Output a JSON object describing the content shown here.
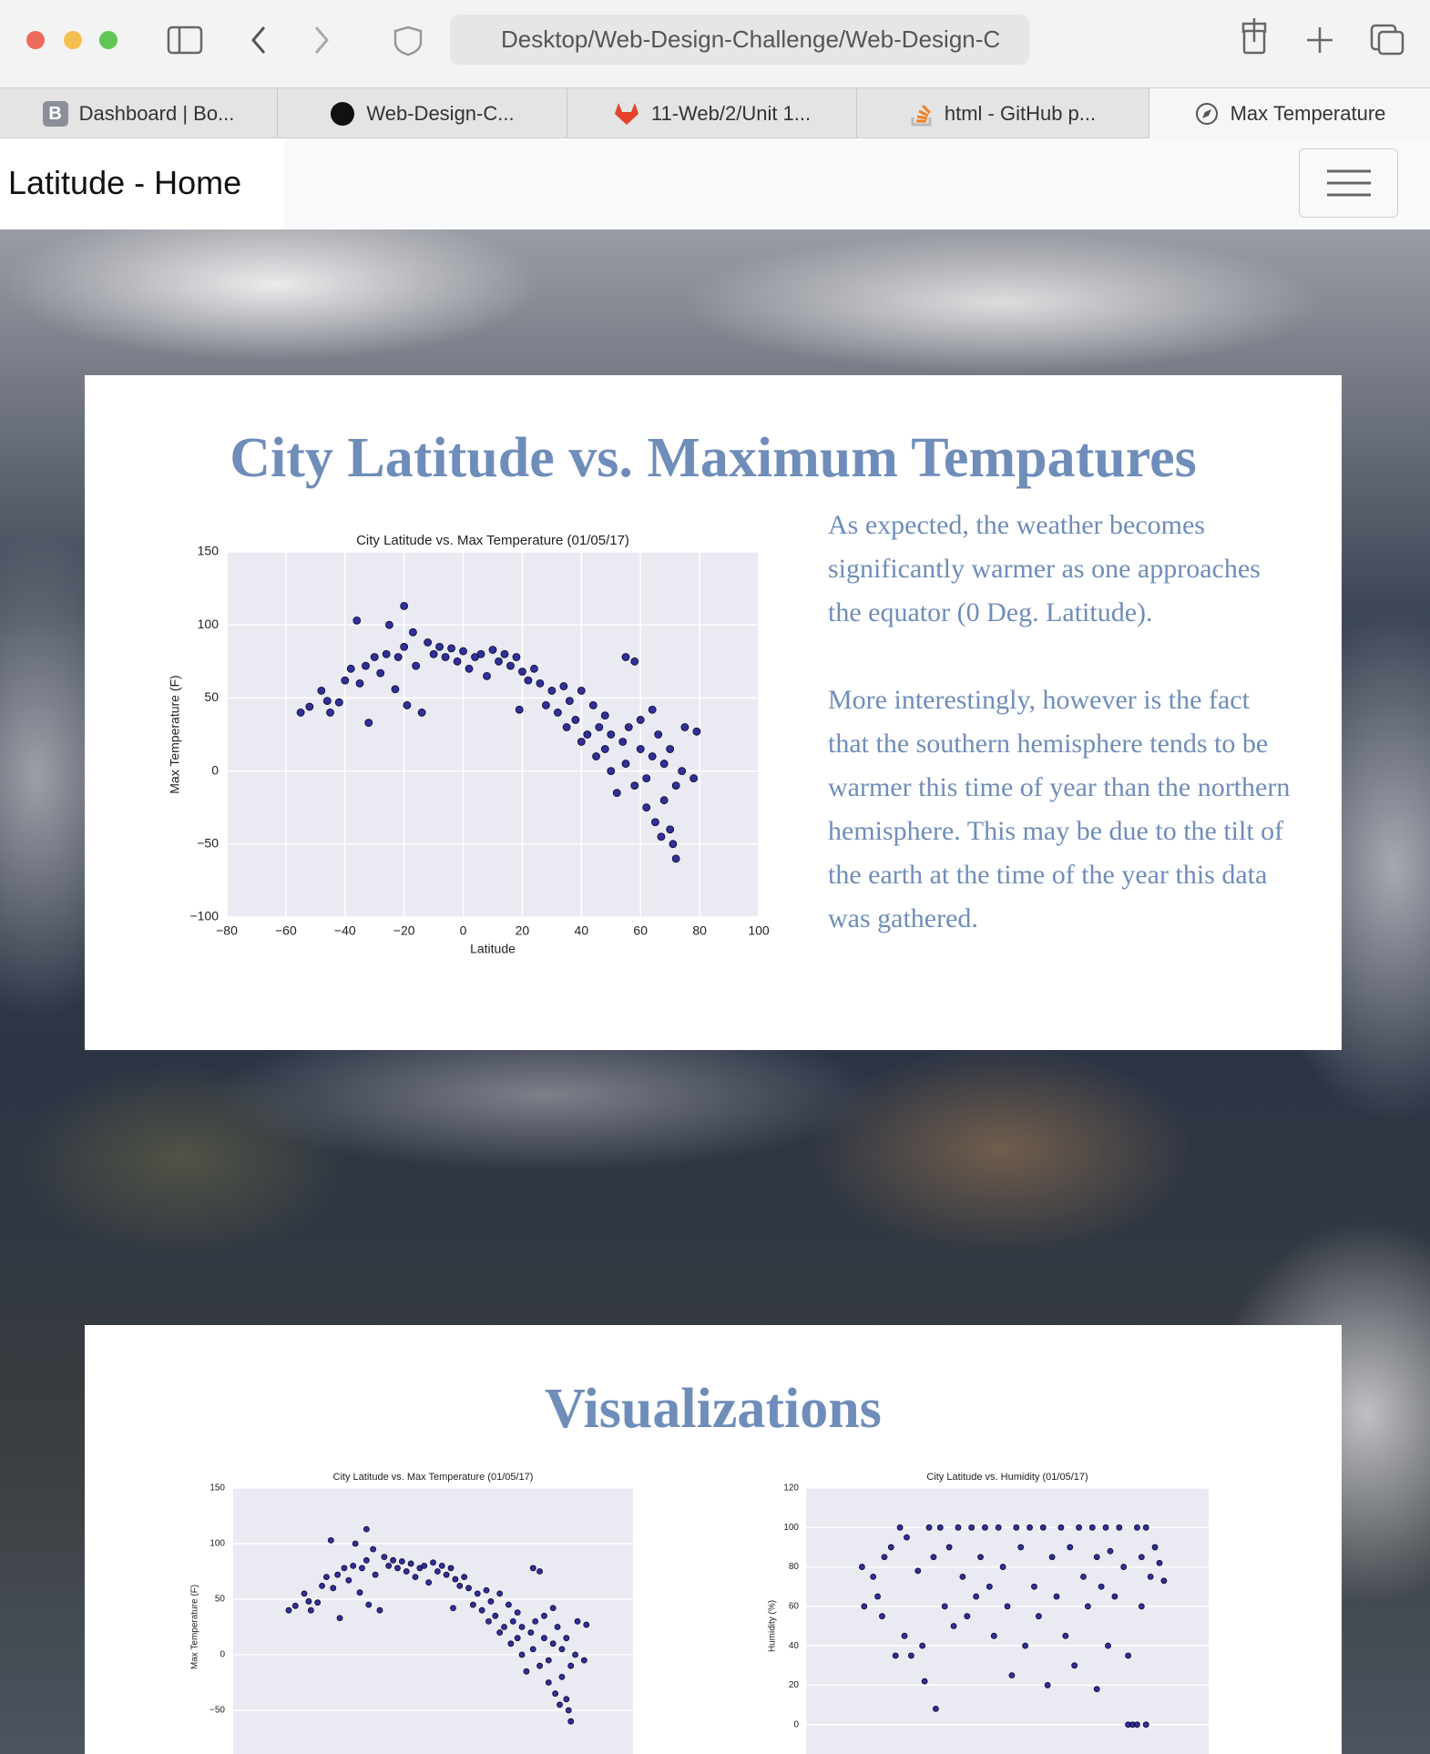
{
  "browser": {
    "url": "Desktop/Web-Design-Challenge/Web-Design-C",
    "tab_icon_letter": "B",
    "tabs": [
      "Dashboard | Bo...",
      "Web-Design-C...",
      "11-Web/2/Unit 1...",
      "html - GitHub p...",
      "Max Temperature"
    ]
  },
  "navbar": {
    "brand": "Latitude - Home"
  },
  "sections": [
    {
      "heading": "City Latitude vs. Maximum Tempatures",
      "paragraphs": [
        "As expected, the weather becomes significantly warmer as one approaches the equator (0 Deg. Latitude).",
        "More interestingly, however is the fact that the southern hemisphere tends to be warmer this time of year than the northern hemisphere. This may be due to the tilt of the earth at the time of the year this data was gathered."
      ]
    },
    {
      "heading": "Visualizations"
    }
  ],
  "chart_data": [
    {
      "type": "scatter",
      "title": "City Latitude vs. Max Temperature (01/05/17)",
      "x_label": "Latitude",
      "y_label": "Max Temperature (F)",
      "color": "#1c1c8f",
      "grid": true,
      "xlim": [
        -80,
        100
      ],
      "ylim": [
        -100,
        150
      ],
      "xticks": [
        {
          "value": -80,
          "label": "−80"
        },
        {
          "value": -60,
          "label": "−60"
        },
        {
          "value": -40,
          "label": "−40"
        },
        {
          "value": -20,
          "label": "−20"
        },
        0,
        20,
        40,
        60,
        80,
        100
      ],
      "yticks": [
        {
          "value": -100,
          "label": "−100"
        },
        {
          "value": -50,
          "label": "−50"
        },
        0,
        50,
        100,
        150
      ],
      "x": [
        -55,
        -52,
        -48,
        -46,
        -45,
        -42,
        -40,
        -38,
        -36,
        -35,
        -33,
        -32,
        -30,
        -28,
        -26,
        -25,
        -23,
        -22,
        -20,
        -20,
        -19,
        -17,
        -16,
        -14,
        -12,
        -10,
        -8,
        -6,
        -4,
        -2,
        0,
        2,
        4,
        6,
        8,
        10,
        12,
        14,
        16,
        18,
        19,
        20,
        22,
        24,
        26,
        28,
        30,
        32,
        34,
        35,
        36,
        38,
        40,
        40,
        42,
        44,
        45,
        46,
        48,
        48,
        50,
        50,
        52,
        54,
        55,
        55,
        56,
        58,
        58,
        60,
        60,
        62,
        62,
        64,
        64,
        65,
        66,
        67,
        68,
        68,
        70,
        70,
        71,
        72,
        72,
        74,
        75,
        78,
        79
      ],
      "values": [
        40,
        44,
        55,
        48,
        40,
        47,
        62,
        70,
        103,
        60,
        72,
        33,
        78,
        67,
        80,
        100,
        56,
        78,
        113,
        85,
        45,
        95,
        72,
        40,
        88,
        80,
        85,
        78,
        84,
        75,
        82,
        70,
        78,
        80,
        65,
        83,
        75,
        80,
        72,
        78,
        42,
        68,
        62,
        70,
        60,
        45,
        55,
        40,
        58,
        30,
        48,
        35,
        55,
        20,
        25,
        45,
        10,
        30,
        15,
        38,
        25,
        0,
        -15,
        20,
        78,
        5,
        30,
        75,
        -10,
        15,
        35,
        -5,
        -25,
        42,
        10,
        -35,
        25,
        -45,
        -20,
        5,
        -40,
        15,
        -50,
        -60,
        -10,
        0,
        30,
        -5,
        27
      ]
    },
    {
      "type": "scatter",
      "title": "City Latitude vs. Max Temperature (01/05/17)",
      "y_label": "Max Temperature (F)",
      "color": "#1c1c8f",
      "grid": true,
      "xlim": [
        -80,
        100
      ],
      "ylim": [
        -100,
        150
      ],
      "yticks": [
        {
          "value": -50,
          "label": "−50"
        },
        0,
        50,
        100,
        150
      ],
      "x": [
        -55,
        -52,
        -48,
        -46,
        -45,
        -42,
        -40,
        -38,
        -36,
        -35,
        -33,
        -32,
        -30,
        -28,
        -26,
        -25,
        -23,
        -22,
        -20,
        -20,
        -19,
        -17,
        -16,
        -14,
        -12,
        -10,
        -8,
        -6,
        -4,
        -2,
        0,
        2,
        4,
        6,
        8,
        10,
        12,
        14,
        16,
        18,
        19,
        20,
        22,
        24,
        26,
        28,
        30,
        32,
        34,
        35,
        36,
        38,
        40,
        40,
        42,
        44,
        45,
        46,
        48,
        48,
        50,
        50,
        52,
        54,
        55,
        55,
        56,
        58,
        58,
        60,
        60,
        62,
        62,
        64,
        64,
        65,
        66,
        67,
        68,
        68,
        70,
        70,
        71,
        72,
        72,
        74,
        75,
        78,
        79
      ],
      "values": [
        40,
        44,
        55,
        48,
        40,
        47,
        62,
        70,
        103,
        60,
        72,
        33,
        78,
        67,
        80,
        100,
        56,
        78,
        113,
        85,
        45,
        95,
        72,
        40,
        88,
        80,
        85,
        78,
        84,
        75,
        82,
        70,
        78,
        80,
        65,
        83,
        75,
        80,
        72,
        78,
        42,
        68,
        62,
        70,
        60,
        45,
        55,
        40,
        58,
        30,
        48,
        35,
        55,
        20,
        25,
        45,
        10,
        30,
        15,
        38,
        25,
        0,
        -15,
        20,
        78,
        5,
        30,
        75,
        -10,
        15,
        35,
        -5,
        -25,
        42,
        10,
        -35,
        25,
        -45,
        -20,
        5,
        -40,
        15,
        -50,
        -60,
        -10,
        0,
        30,
        -5,
        27
      ]
    },
    {
      "type": "scatter",
      "title": "City Latitude vs. Humidity (01/05/17)",
      "y_label": "Humidity (%)",
      "color": "#1c1c8f",
      "grid": true,
      "xlim": [
        -80,
        100
      ],
      "ylim": [
        -20,
        120
      ],
      "yticks": [
        0,
        20,
        40,
        60,
        80,
        100,
        120
      ],
      "x": [
        -55,
        -54,
        -50,
        -48,
        -46,
        -45,
        -42,
        -40,
        -38,
        -36,
        -35,
        -33,
        -30,
        -28,
        -27,
        -25,
        -23,
        -22,
        -20,
        -18,
        -16,
        -14,
        -12,
        -10,
        -8,
        -6,
        -4,
        -2,
        0,
        2,
        4,
        6,
        8,
        10,
        12,
        14,
        16,
        18,
        20,
        22,
        24,
        26,
        28,
        30,
        32,
        34,
        36,
        38,
        40,
        42,
        44,
        46,
        48,
        50,
        50,
        52,
        54,
        55,
        56,
        58,
        60,
        62,
        64,
        64,
        66,
        68,
        68,
        70,
        70,
        72,
        72,
        74,
        76,
        78,
        80
      ],
      "values": [
        80,
        60,
        75,
        65,
        55,
        85,
        90,
        35,
        100,
        45,
        95,
        35,
        78,
        40,
        22,
        100,
        85,
        8,
        100,
        60,
        90,
        50,
        100,
        75,
        55,
        100,
        65,
        85,
        100,
        70,
        45,
        100,
        80,
        60,
        25,
        100,
        90,
        40,
        100,
        70,
        55,
        100,
        20,
        85,
        65,
        100,
        45,
        90,
        30,
        100,
        75,
        60,
        100,
        85,
        18,
        70,
        100,
        40,
        88,
        65,
        100,
        80,
        35,
        0,
        0,
        100,
        0,
        85,
        60,
        100,
        0,
        75,
        90,
        82,
        73
      ]
    }
  ]
}
